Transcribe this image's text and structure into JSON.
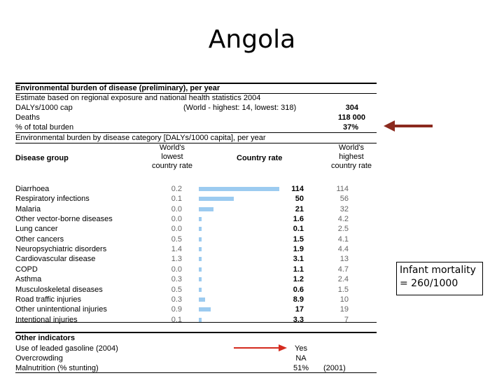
{
  "slide": {
    "title": "Angola"
  },
  "burden": {
    "heading": "Environmental burden of disease (preliminary), per year",
    "estimate": "Estimate based on regional exposure and national health statistics 2004",
    "dalys_label": "DALYs/1000 cap",
    "dalys_world": "(World - highest: 14, lowest: 318)",
    "dalys_value": "304",
    "deaths_label": "Deaths",
    "deaths_value": "118 000",
    "pct_label": "% of total burden",
    "pct_value": "37%",
    "category_heading": "Environmental burden by disease category [DALYs/1000 capita], per year"
  },
  "table": {
    "col_group": "Disease group",
    "col_lowest": [
      "World's",
      "lowest",
      "country rate"
    ],
    "col_country": "Country rate",
    "col_highest": [
      "World's",
      "highest",
      "country rate"
    ],
    "rows": [
      {
        "group": "Diarrhoea",
        "lowest": "0.2",
        "rate": "114",
        "rate_value": 114,
        "highest": "114"
      },
      {
        "group": "Respiratory infections",
        "lowest": "0.1",
        "rate": "50",
        "rate_value": 50,
        "highest": "56"
      },
      {
        "group": "Malaria",
        "lowest": "0.0",
        "rate": "21",
        "rate_value": 21,
        "highest": "32"
      },
      {
        "group": "Other vector-borne diseases",
        "lowest": "0.0",
        "rate": "1.6",
        "rate_value": 1.6,
        "highest": "4.2"
      },
      {
        "group": "Lung cancer",
        "lowest": "0.0",
        "rate": "0.1",
        "rate_value": 0.1,
        "highest": "2.5"
      },
      {
        "group": "Other cancers",
        "lowest": "0.5",
        "rate": "1.5",
        "rate_value": 1.5,
        "highest": "4.1"
      },
      {
        "group": "Neuropsychiatric disorders",
        "lowest": "1.4",
        "rate": "1.9",
        "rate_value": 1.9,
        "highest": "4.4"
      },
      {
        "group": "Cardiovascular disease",
        "lowest": "1.3",
        "rate": "3.1",
        "rate_value": 3.1,
        "highest": "13"
      },
      {
        "group": "COPD",
        "lowest": "0.0",
        "rate": "1.1",
        "rate_value": 1.1,
        "highest": "4.7"
      },
      {
        "group": "Asthma",
        "lowest": "0.3",
        "rate": "1.2",
        "rate_value": 1.2,
        "highest": "2.4"
      },
      {
        "group": "Musculoskeletal diseases",
        "lowest": "0.5",
        "rate": "0.6",
        "rate_value": 0.6,
        "highest": "1.5"
      },
      {
        "group": "Road traffic injuries",
        "lowest": "0.3",
        "rate": "8.9",
        "rate_value": 8.9,
        "highest": "10"
      },
      {
        "group": "Other unintentional injuries",
        "lowest": "0.9",
        "rate": "17",
        "rate_value": 17,
        "highest": "19"
      },
      {
        "group": "Intentional injuries",
        "lowest": "0.1",
        "rate": "3.3",
        "rate_value": 3.3,
        "highest": "7"
      }
    ]
  },
  "other": {
    "heading": "Other indicators",
    "rows": [
      {
        "label": "Use of leaded gasoline (2004)",
        "value": "Yes",
        "note": ""
      },
      {
        "label": "Overcrowding",
        "value": "NA",
        "note": ""
      },
      {
        "label": "Malnutrition (% stunting)",
        "value": "51%",
        "note": "(2001)"
      }
    ]
  },
  "annotation": {
    "lines": [
      "Infant mortality",
      "= 260/1000"
    ]
  },
  "colors": {
    "bar": "#9ccbf0",
    "arrow_large": "#8b2a1e",
    "arrow_small": "#d42a1e"
  }
}
